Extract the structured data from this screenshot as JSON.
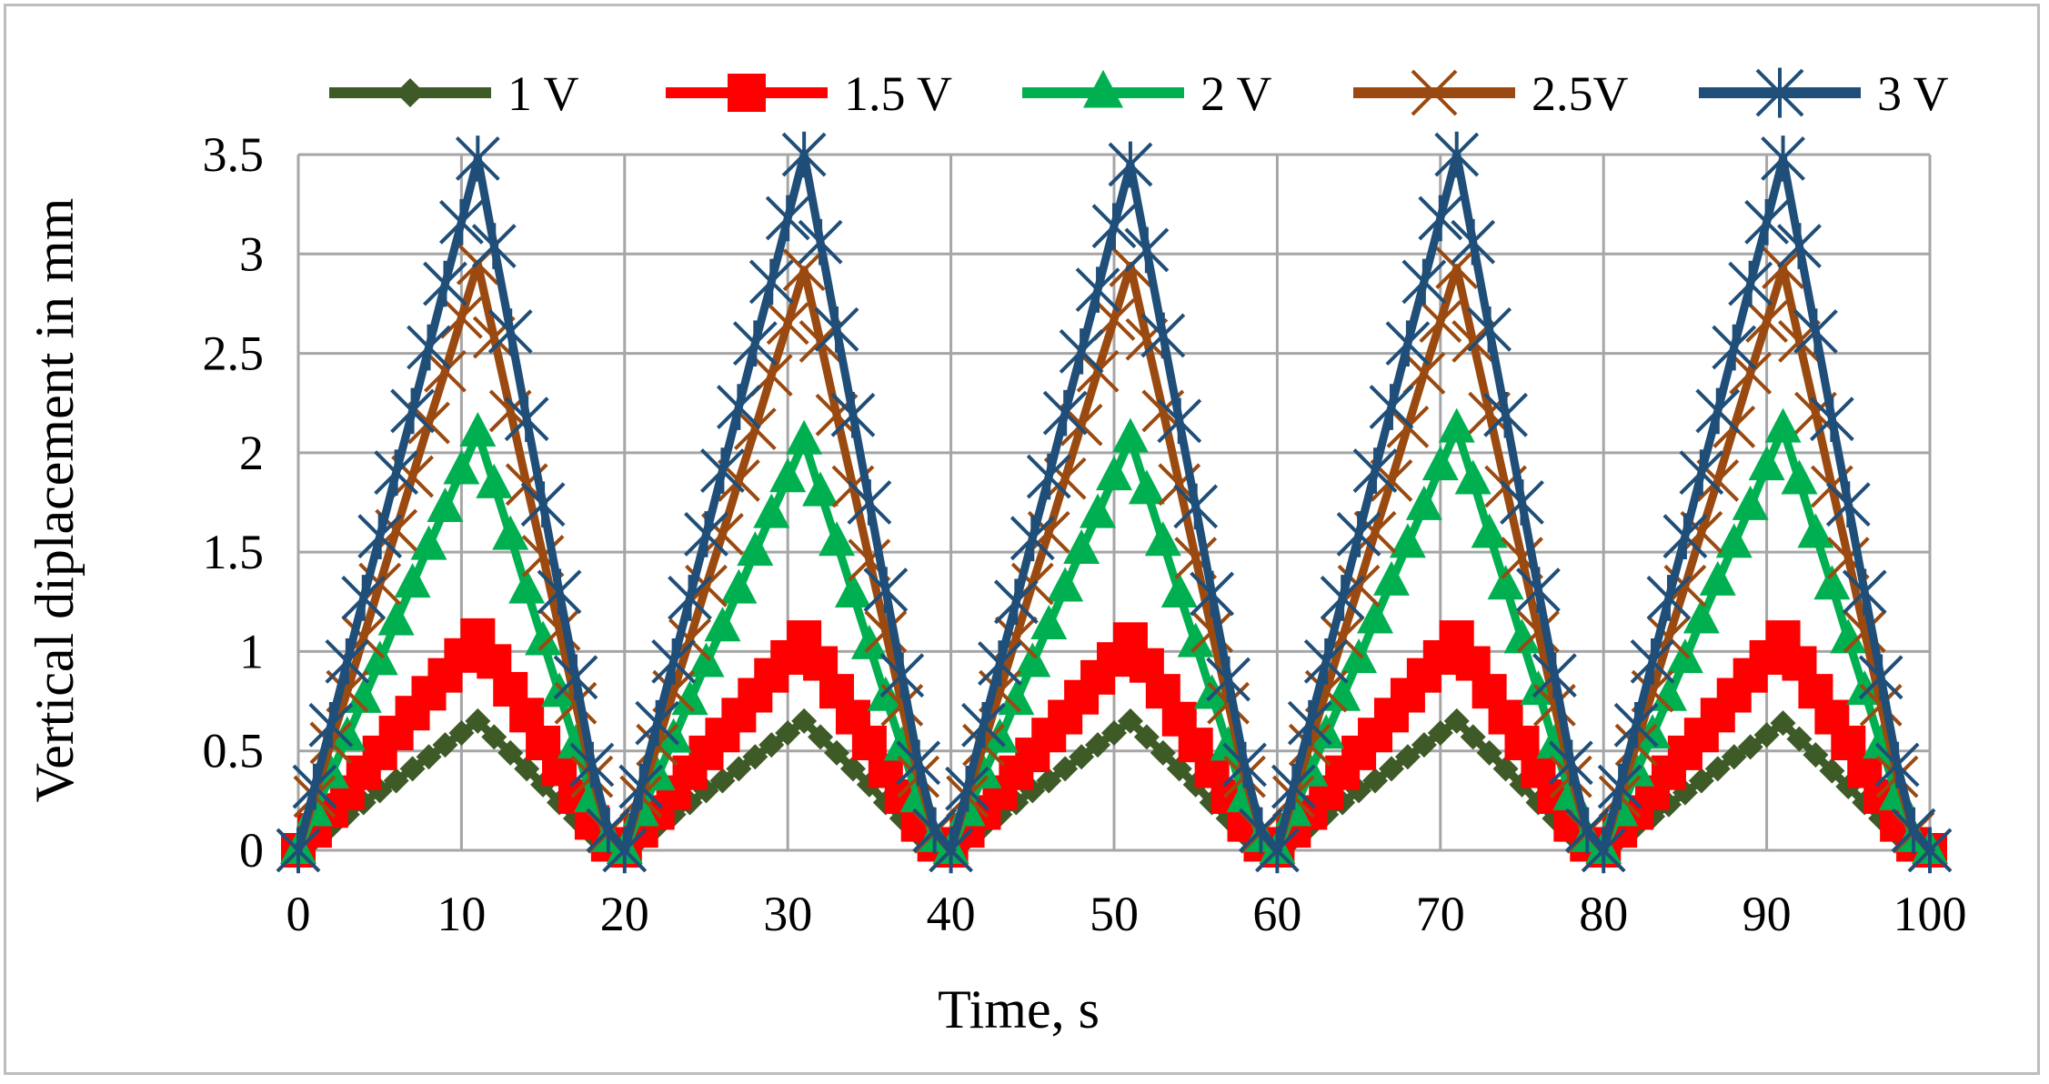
{
  "chart_data": {
    "type": "line",
    "title": "",
    "xlabel": "Time, s",
    "ylabel": "Vertical diplacement in mm",
    "xlim": [
      0,
      100
    ],
    "ylim": [
      0,
      3.5
    ],
    "xticks": [
      "0",
      "10",
      "20",
      "30",
      "40",
      "50",
      "60",
      "70",
      "80",
      "90",
      "100"
    ],
    "yticks": [
      "0",
      "0.5",
      "1",
      "1.5",
      "2",
      "2.5",
      "3",
      "3.5"
    ],
    "grid": true,
    "legend_position": "top",
    "series": [
      {
        "name": "1 V",
        "color": "#3d5a27",
        "marker": "diamond",
        "period": 20,
        "peak_time": 11,
        "peak": 0.65,
        "peaks": [
          0.65,
          0.65,
          0.65,
          0.65,
          0.64
        ],
        "x": [
          0,
          1,
          2,
          3,
          4,
          5,
          6,
          7,
          8,
          9,
          10,
          11,
          12,
          13,
          14,
          15,
          16,
          17,
          18,
          19,
          20,
          21,
          22,
          23,
          24,
          25,
          26,
          27,
          28,
          29,
          30,
          31,
          32,
          33,
          34,
          35,
          36,
          37,
          38,
          39,
          40,
          41,
          42,
          43,
          44,
          45,
          46,
          47,
          48,
          49,
          50,
          51,
          52,
          53,
          54,
          55,
          56,
          57,
          58,
          59,
          60,
          61,
          62,
          63,
          64,
          65,
          66,
          67,
          68,
          69,
          70,
          71,
          72,
          73,
          74,
          75,
          76,
          77,
          78,
          79,
          80,
          81,
          82,
          83,
          84,
          85,
          86,
          87,
          88,
          89,
          90,
          91,
          92,
          93,
          94,
          95,
          96,
          97,
          98,
          99,
          100
        ],
        "y": [
          0.0,
          0.06,
          0.12,
          0.18,
          0.24,
          0.3,
          0.35,
          0.41,
          0.47,
          0.53,
          0.59,
          0.65,
          0.57,
          0.49,
          0.41,
          0.33,
          0.24,
          0.16,
          0.08,
          0.02,
          0.0,
          0.06,
          0.12,
          0.18,
          0.24,
          0.3,
          0.35,
          0.41,
          0.47,
          0.53,
          0.59,
          0.65,
          0.57,
          0.49,
          0.41,
          0.33,
          0.24,
          0.16,
          0.08,
          0.02,
          0.0,
          0.06,
          0.12,
          0.18,
          0.24,
          0.3,
          0.35,
          0.41,
          0.47,
          0.53,
          0.59,
          0.65,
          0.57,
          0.49,
          0.41,
          0.33,
          0.24,
          0.16,
          0.08,
          0.02,
          0.0,
          0.06,
          0.12,
          0.18,
          0.24,
          0.3,
          0.35,
          0.41,
          0.47,
          0.53,
          0.59,
          0.65,
          0.57,
          0.49,
          0.41,
          0.33,
          0.24,
          0.16,
          0.08,
          0.02,
          0.0,
          0.06,
          0.12,
          0.17,
          0.23,
          0.29,
          0.35,
          0.41,
          0.47,
          0.52,
          0.58,
          0.64,
          0.56,
          0.48,
          0.4,
          0.32,
          0.24,
          0.16,
          0.08,
          0.02,
          0.0
        ]
      },
      {
        "name": "1.5 V",
        "color": "#ff0000",
        "marker": "square",
        "period": 20,
        "peak_time": 11,
        "peak": 1.08,
        "peaks": [
          1.08,
          1.07,
          1.06,
          1.07,
          1.07
        ],
        "x": [
          0,
          1,
          2,
          3,
          4,
          5,
          6,
          7,
          8,
          9,
          10,
          11,
          12,
          13,
          14,
          15,
          16,
          17,
          18,
          19,
          20,
          21,
          22,
          23,
          24,
          25,
          26,
          27,
          28,
          29,
          30,
          31,
          32,
          33,
          34,
          35,
          36,
          37,
          38,
          39,
          40,
          41,
          42,
          43,
          44,
          45,
          46,
          47,
          48,
          49,
          50,
          51,
          52,
          53,
          54,
          55,
          56,
          57,
          58,
          59,
          60,
          61,
          62,
          63,
          64,
          65,
          66,
          67,
          68,
          69,
          70,
          71,
          72,
          73,
          74,
          75,
          76,
          77,
          78,
          79,
          80,
          81,
          82,
          83,
          84,
          85,
          86,
          87,
          88,
          89,
          90,
          91,
          92,
          93,
          94,
          95,
          96,
          97,
          98,
          99,
          100
        ],
        "y": [
          0.0,
          0.1,
          0.2,
          0.29,
          0.39,
          0.49,
          0.59,
          0.69,
          0.79,
          0.88,
          0.98,
          1.08,
          0.95,
          0.81,
          0.68,
          0.54,
          0.41,
          0.27,
          0.14,
          0.03,
          0.0,
          0.1,
          0.19,
          0.29,
          0.39,
          0.49,
          0.58,
          0.68,
          0.78,
          0.88,
          0.97,
          1.07,
          0.94,
          0.8,
          0.67,
          0.54,
          0.4,
          0.27,
          0.13,
          0.03,
          0.0,
          0.1,
          0.19,
          0.29,
          0.39,
          0.48,
          0.58,
          0.67,
          0.77,
          0.87,
          0.96,
          1.06,
          0.93,
          0.8,
          0.66,
          0.53,
          0.4,
          0.27,
          0.13,
          0.03,
          0.0,
          0.1,
          0.19,
          0.29,
          0.39,
          0.49,
          0.58,
          0.68,
          0.78,
          0.88,
          0.97,
          1.07,
          0.94,
          0.8,
          0.67,
          0.54,
          0.4,
          0.27,
          0.13,
          0.03,
          0.0,
          0.1,
          0.19,
          0.29,
          0.39,
          0.49,
          0.58,
          0.68,
          0.78,
          0.88,
          0.97,
          1.07,
          0.94,
          0.8,
          0.67,
          0.54,
          0.4,
          0.27,
          0.13,
          0.03,
          0.0
        ]
      },
      {
        "name": "2 V",
        "color": "#00b050",
        "marker": "triangle",
        "period": 20,
        "peak_time": 11,
        "peak": 2.1,
        "peaks": [
          2.1,
          2.06,
          2.07,
          2.12,
          2.12
        ],
        "x": [
          0,
          1,
          2,
          3,
          4,
          5,
          6,
          7,
          8,
          9,
          10,
          11,
          12,
          13,
          14,
          15,
          16,
          17,
          18,
          19,
          20,
          21,
          22,
          23,
          24,
          25,
          26,
          27,
          28,
          29,
          30,
          31,
          32,
          33,
          34,
          35,
          36,
          37,
          38,
          39,
          40,
          41,
          42,
          43,
          44,
          45,
          46,
          47,
          48,
          49,
          50,
          51,
          52,
          53,
          54,
          55,
          56,
          57,
          58,
          59,
          60,
          61,
          62,
          63,
          64,
          65,
          66,
          67,
          68,
          69,
          70,
          71,
          72,
          73,
          74,
          75,
          76,
          77,
          78,
          79,
          80,
          81,
          82,
          83,
          84,
          85,
          86,
          87,
          88,
          89,
          90,
          91,
          92,
          93,
          94,
          95,
          96,
          97,
          98,
          99,
          100
        ],
        "y": [
          0.0,
          0.19,
          0.38,
          0.57,
          0.76,
          0.95,
          1.15,
          1.34,
          1.53,
          1.72,
          1.91,
          2.1,
          1.84,
          1.58,
          1.31,
          1.05,
          0.79,
          0.53,
          0.26,
          0.06,
          0.0,
          0.19,
          0.37,
          0.56,
          0.75,
          0.94,
          1.12,
          1.31,
          1.5,
          1.69,
          1.87,
          2.06,
          1.8,
          1.55,
          1.29,
          1.03,
          0.77,
          0.52,
          0.26,
          0.06,
          0.0,
          0.19,
          0.38,
          0.56,
          0.75,
          0.94,
          1.13,
          1.32,
          1.51,
          1.69,
          1.88,
          2.07,
          1.81,
          1.55,
          1.29,
          1.04,
          0.78,
          0.52,
          0.26,
          0.06,
          0.0,
          0.19,
          0.39,
          0.58,
          0.77,
          0.96,
          1.16,
          1.35,
          1.54,
          1.73,
          1.93,
          2.12,
          1.86,
          1.59,
          1.33,
          1.06,
          0.8,
          0.53,
          0.27,
          0.06,
          0.0,
          0.19,
          0.39,
          0.58,
          0.77,
          0.96,
          1.16,
          1.35,
          1.54,
          1.73,
          1.93,
          2.12,
          1.86,
          1.59,
          1.33,
          1.06,
          0.8,
          0.53,
          0.27,
          0.06,
          0.0
        ]
      },
      {
        "name": "2.5V",
        "color": "#9a4a10",
        "marker": "x",
        "period": 20,
        "peak_time": 11,
        "peak": 2.95,
        "peaks": [
          2.95,
          2.92,
          2.94,
          2.93,
          2.93
        ],
        "x": [
          0,
          1,
          2,
          3,
          4,
          5,
          6,
          7,
          8,
          9,
          10,
          11,
          12,
          13,
          14,
          15,
          16,
          17,
          18,
          19,
          20,
          21,
          22,
          23,
          24,
          25,
          26,
          27,
          28,
          29,
          30,
          31,
          32,
          33,
          34,
          35,
          36,
          37,
          38,
          39,
          40,
          41,
          42,
          43,
          44,
          45,
          46,
          47,
          48,
          49,
          50,
          51,
          52,
          53,
          54,
          55,
          56,
          57,
          58,
          59,
          60,
          61,
          62,
          63,
          64,
          65,
          66,
          67,
          68,
          69,
          70,
          71,
          72,
          73,
          74,
          75,
          76,
          77,
          78,
          79,
          80,
          81,
          82,
          83,
          84,
          85,
          86,
          87,
          88,
          89,
          90,
          91,
          92,
          93,
          94,
          95,
          96,
          97,
          98,
          99,
          100
        ],
        "y": [
          0.0,
          0.27,
          0.54,
          0.8,
          1.07,
          1.34,
          1.61,
          1.88,
          2.15,
          2.41,
          2.68,
          2.95,
          2.58,
          2.21,
          1.84,
          1.48,
          1.11,
          0.74,
          0.37,
          0.09,
          0.0,
          0.27,
          0.53,
          0.8,
          1.06,
          1.33,
          1.59,
          1.86,
          2.12,
          2.39,
          2.65,
          2.92,
          2.56,
          2.19,
          1.83,
          1.46,
          1.1,
          0.73,
          0.37,
          0.09,
          0.0,
          0.27,
          0.53,
          0.8,
          1.07,
          1.34,
          1.6,
          1.87,
          2.14,
          2.41,
          2.67,
          2.94,
          2.57,
          2.21,
          1.84,
          1.47,
          1.1,
          0.74,
          0.37,
          0.09,
          0.0,
          0.27,
          0.53,
          0.8,
          1.07,
          1.33,
          1.6,
          1.86,
          2.13,
          2.4,
          2.66,
          2.93,
          2.56,
          2.2,
          1.83,
          1.47,
          1.1,
          0.73,
          0.37,
          0.09,
          0.0,
          0.27,
          0.53,
          0.8,
          1.07,
          1.33,
          1.6,
          1.86,
          2.13,
          2.4,
          2.66,
          2.93,
          2.56,
          2.2,
          1.83,
          1.47,
          1.1,
          0.73,
          0.37,
          0.09,
          0.0
        ]
      },
      {
        "name": "3 V",
        "color": "#1f4e79",
        "marker": "star",
        "period": 20,
        "peak_time": 11,
        "peak": 3.48,
        "peaks": [
          3.48,
          3.5,
          3.45,
          3.5,
          3.48
        ],
        "x": [
          0,
          1,
          2,
          3,
          4,
          5,
          6,
          7,
          8,
          9,
          10,
          11,
          12,
          13,
          14,
          15,
          16,
          17,
          18,
          19,
          20,
          21,
          22,
          23,
          24,
          25,
          26,
          27,
          28,
          29,
          30,
          31,
          32,
          33,
          34,
          35,
          36,
          37,
          38,
          39,
          40,
          41,
          42,
          43,
          44,
          45,
          46,
          47,
          48,
          49,
          50,
          51,
          52,
          53,
          54,
          55,
          56,
          57,
          58,
          59,
          60,
          61,
          62,
          63,
          64,
          65,
          66,
          67,
          68,
          69,
          70,
          71,
          72,
          73,
          74,
          75,
          76,
          77,
          78,
          79,
          80,
          81,
          82,
          83,
          84,
          85,
          86,
          87,
          88,
          89,
          90,
          91,
          92,
          93,
          94,
          95,
          96,
          97,
          98,
          99,
          100
        ],
        "y": [
          0.0,
          0.32,
          0.63,
          0.95,
          1.27,
          1.58,
          1.9,
          2.21,
          2.53,
          2.85,
          3.16,
          3.48,
          3.04,
          2.61,
          2.17,
          1.74,
          1.3,
          0.87,
          0.43,
          0.1,
          0.0,
          0.32,
          0.64,
          0.95,
          1.27,
          1.59,
          1.91,
          2.23,
          2.55,
          2.86,
          3.18,
          3.5,
          3.06,
          2.62,
          2.19,
          1.75,
          1.31,
          0.88,
          0.44,
          0.1,
          0.0,
          0.31,
          0.63,
          0.94,
          1.25,
          1.57,
          1.88,
          2.2,
          2.51,
          2.82,
          3.14,
          3.45,
          3.02,
          2.59,
          2.16,
          1.73,
          1.29,
          0.86,
          0.43,
          0.1,
          0.0,
          0.32,
          0.64,
          0.95,
          1.27,
          1.59,
          1.91,
          2.23,
          2.55,
          2.86,
          3.18,
          3.5,
          3.06,
          2.62,
          2.19,
          1.75,
          1.31,
          0.88,
          0.44,
          0.1,
          0.0,
          0.32,
          0.63,
          0.95,
          1.27,
          1.58,
          1.9,
          2.21,
          2.53,
          2.85,
          3.16,
          3.48,
          3.04,
          2.61,
          2.17,
          1.74,
          1.3,
          0.87,
          0.43,
          0.1,
          0.0
        ]
      }
    ]
  }
}
